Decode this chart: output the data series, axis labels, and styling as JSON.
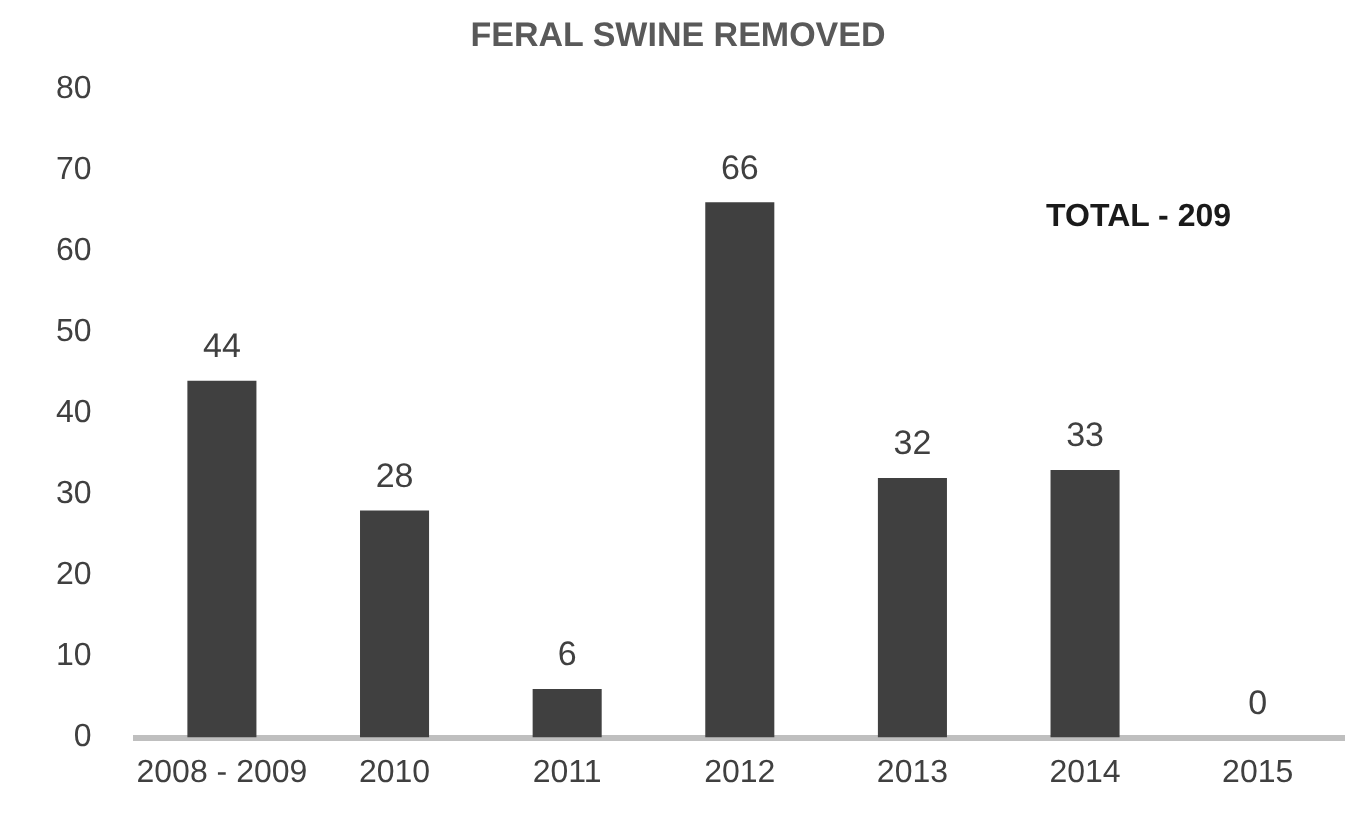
{
  "chart_data": {
    "type": "bar",
    "title": "FERAL SWINE REMOVED",
    "categories": [
      "2008 - 2009",
      "2010",
      "2011",
      "2012",
      "2013",
      "2014",
      "2015"
    ],
    "values": [
      44,
      28,
      6,
      66,
      32,
      33,
      0
    ],
    "color": "#404040",
    "ylim": [
      0,
      80
    ],
    "yticks": [
      0,
      10,
      20,
      30,
      40,
      50,
      60,
      70,
      80
    ],
    "grid": false,
    "data_labels": true,
    "annotations": [
      "TOTAL - 209"
    ]
  }
}
